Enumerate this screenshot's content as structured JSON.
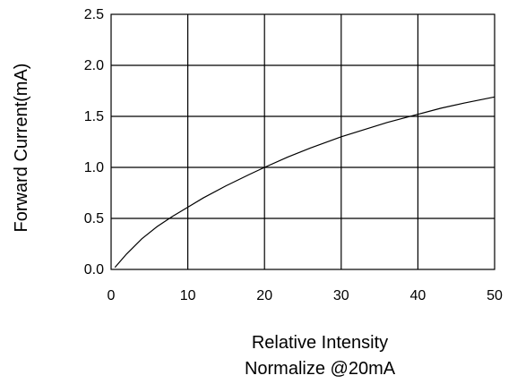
{
  "chart_data": {
    "type": "line",
    "title": "",
    "xlabel": [
      "Relative Intensity",
      "Normalize @20mA"
    ],
    "ylabel": "Forward Current(mA)",
    "xlim": [
      0,
      50
    ],
    "ylim": [
      0,
      2.5
    ],
    "grid": true,
    "x_ticks": [
      0,
      10,
      20,
      30,
      40,
      50
    ],
    "y_ticks": [
      0.0,
      0.5,
      1.0,
      1.5,
      2.0,
      2.5
    ],
    "x_tick_labels": [
      "0",
      "10",
      "20",
      "30",
      "40",
      "50"
    ],
    "y_tick_labels": [
      "0.0",
      "0.5",
      "1.0",
      "1.5",
      "2.0",
      "2.5"
    ],
    "series": [
      {
        "x": [
          0.5,
          2,
          4,
          6,
          8,
          10,
          12,
          15,
          18,
          20,
          23,
          26,
          30,
          33,
          36,
          40,
          43,
          46,
          50
        ],
        "y": [
          0.02,
          0.15,
          0.3,
          0.42,
          0.52,
          0.61,
          0.7,
          0.82,
          0.93,
          1.0,
          1.1,
          1.19,
          1.3,
          1.37,
          1.44,
          1.52,
          1.58,
          1.63,
          1.69
        ]
      }
    ],
    "colors": {
      "line": "#000000",
      "grid": "#000000",
      "background": "#ffffff"
    }
  }
}
